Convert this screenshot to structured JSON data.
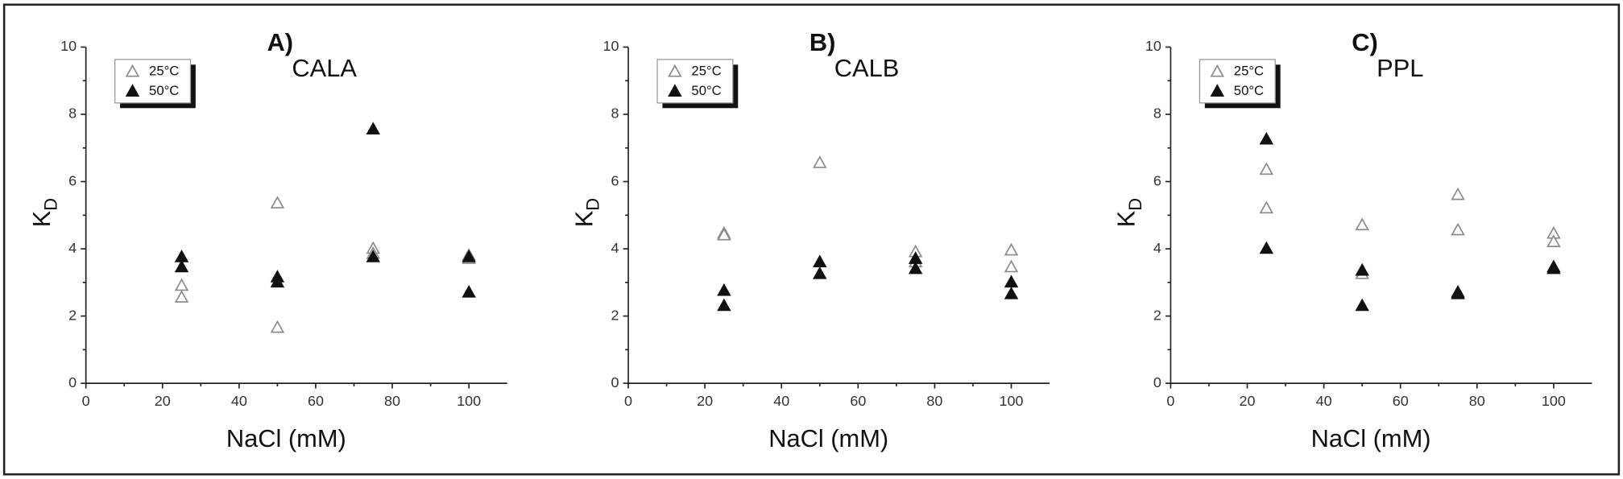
{
  "chart_data": [
    {
      "type": "scatter",
      "title": "A)",
      "subtitle": "CALA",
      "xlabel": "NaCl (mM)",
      "ylabel": "K",
      "ylabel_subscript": "D",
      "xlim": [
        0,
        110
      ],
      "xticks": [
        0,
        20,
        40,
        60,
        80,
        100
      ],
      "ylim": [
        0,
        10
      ],
      "yticks": [
        0,
        2,
        4,
        6,
        8,
        10
      ],
      "series": [
        {
          "name": "25°C",
          "color": "#8a8a8a",
          "marker": "open",
          "x": [
            25,
            25,
            50,
            50,
            75,
            75,
            100,
            100
          ],
          "values": [
            2.9,
            2.55,
            5.35,
            1.65,
            4.0,
            3.85,
            3.8,
            3.7
          ]
        },
        {
          "name": "50°C",
          "color": "#111111",
          "marker": "filled",
          "x": [
            25,
            25,
            50,
            50,
            75,
            75,
            100,
            100
          ],
          "values": [
            3.75,
            3.45,
            3.15,
            3.0,
            7.55,
            3.75,
            3.75,
            2.7
          ]
        }
      ]
    },
    {
      "type": "scatter",
      "title": "B)",
      "subtitle": "CALB",
      "xlabel": "NaCl (mM)",
      "ylabel": "K",
      "ylabel_subscript": "D",
      "xlim": [
        0,
        110
      ],
      "xticks": [
        0,
        20,
        40,
        60,
        80,
        100
      ],
      "ylim": [
        0,
        10
      ],
      "yticks": [
        0,
        2,
        4,
        6,
        8,
        10
      ],
      "series": [
        {
          "name": "25°C",
          "color": "#8a8a8a",
          "marker": "open",
          "x": [
            25,
            25,
            50,
            75,
            75,
            100,
            100
          ],
          "values": [
            4.45,
            4.4,
            6.55,
            3.9,
            3.6,
            3.95,
            3.45
          ]
        },
        {
          "name": "50°C",
          "color": "#111111",
          "marker": "filled",
          "x": [
            25,
            25,
            50,
            50,
            75,
            75,
            100,
            100
          ],
          "values": [
            2.75,
            2.3,
            3.6,
            3.25,
            3.7,
            3.4,
            3.0,
            2.65
          ]
        }
      ]
    },
    {
      "type": "scatter",
      "title": "C)",
      "subtitle": "PPL",
      "xlabel": "NaCl (mM)",
      "ylabel": "K",
      "ylabel_subscript": "D",
      "xlim": [
        0,
        110
      ],
      "xticks": [
        0,
        20,
        40,
        60,
        80,
        100
      ],
      "ylim": [
        0,
        10
      ],
      "yticks": [
        0,
        2,
        4,
        6,
        8,
        10
      ],
      "series": [
        {
          "name": "25°C",
          "color": "#8a8a8a",
          "marker": "open",
          "x": [
            25,
            25,
            50,
            50,
            75,
            75,
            100,
            100
          ],
          "values": [
            6.35,
            5.2,
            4.7,
            3.25,
            5.6,
            4.55,
            4.45,
            4.2
          ]
        },
        {
          "name": "50°C",
          "color": "#111111",
          "marker": "filled",
          "x": [
            25,
            25,
            50,
            50,
            75,
            75,
            100,
            100
          ],
          "values": [
            7.25,
            4.0,
            3.35,
            2.3,
            2.7,
            2.65,
            3.45,
            3.4
          ]
        }
      ]
    }
  ]
}
